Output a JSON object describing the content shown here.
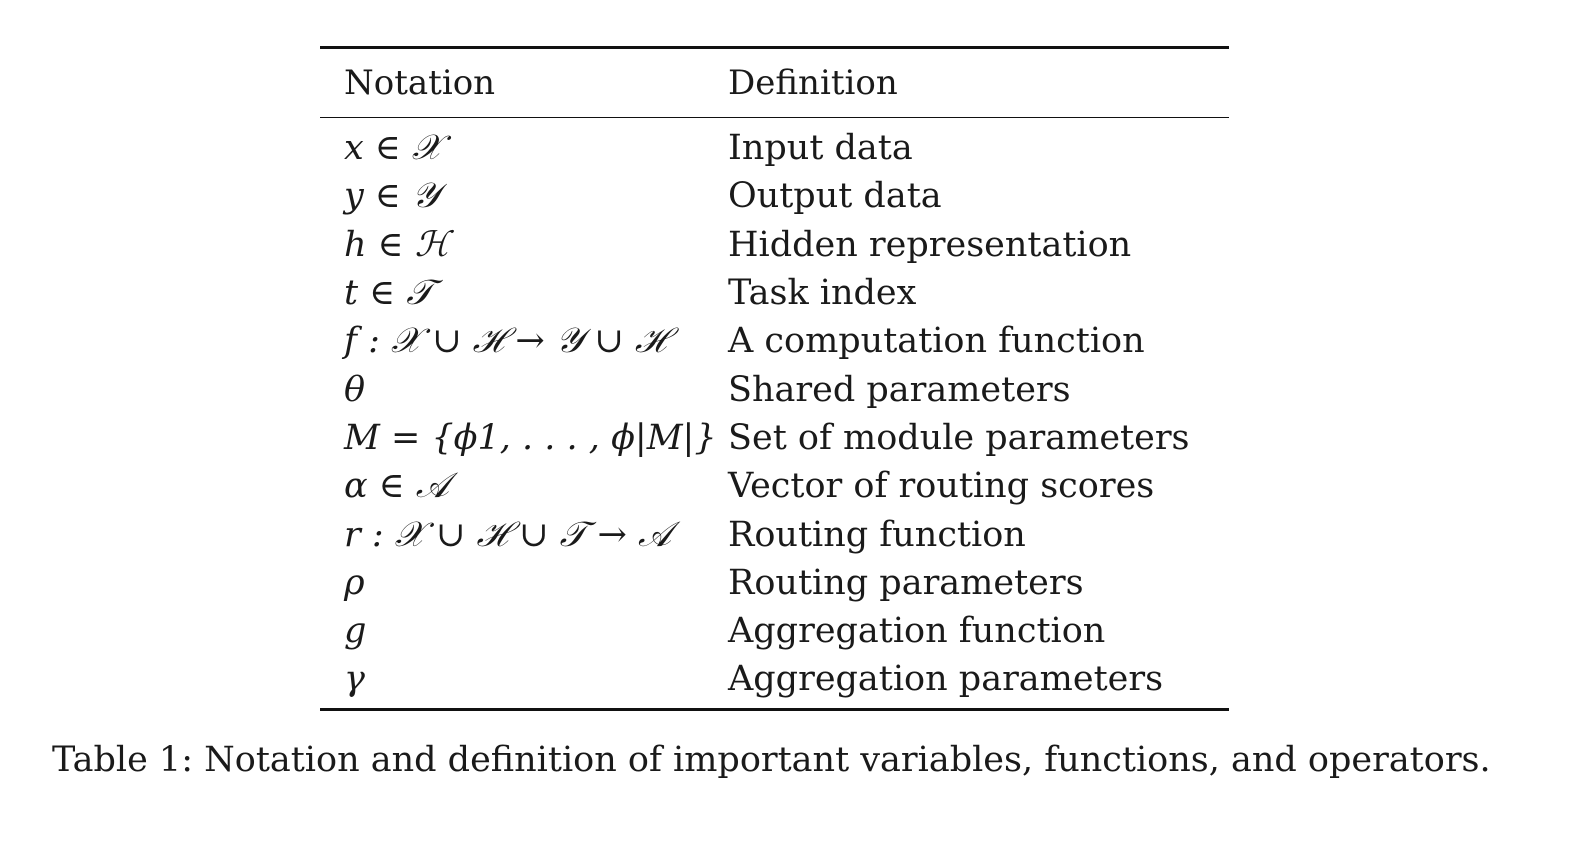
{
  "table": {
    "headers": {
      "notation": "Notation",
      "definition": "Definition"
    },
    "rows": [
      {
        "notation": "x ∈ 𝒳",
        "definition": "Input data"
      },
      {
        "notation": "y ∈ 𝒴",
        "definition": "Output data"
      },
      {
        "notation": "h ∈ ℋ",
        "definition": "Hidden representation"
      },
      {
        "notation": "t ∈ 𝒯",
        "definition": "Task index"
      },
      {
        "notation": "f : 𝒳 ∪ ℋ → 𝒴 ∪ ℋ",
        "definition": "A computation function"
      },
      {
        "notation": "θ",
        "definition": "Shared parameters"
      },
      {
        "notation": "M = {ϕ1, . . . , ϕ|M|}",
        "definition": "Set of module parameters"
      },
      {
        "notation": "α ∈ 𝒜",
        "definition": "Vector of routing scores"
      },
      {
        "notation": "r : 𝒳 ∪ ℋ ∪ 𝒯 → 𝒜",
        "definition": "Routing function"
      },
      {
        "notation": "ρ",
        "definition": "Routing parameters"
      },
      {
        "notation": "g",
        "definition": "Aggregation function"
      },
      {
        "notation": "γ",
        "definition": "Aggregation parameters"
      }
    ]
  },
  "caption": "Table 1: Notation and definition of important variables, functions, and operators."
}
